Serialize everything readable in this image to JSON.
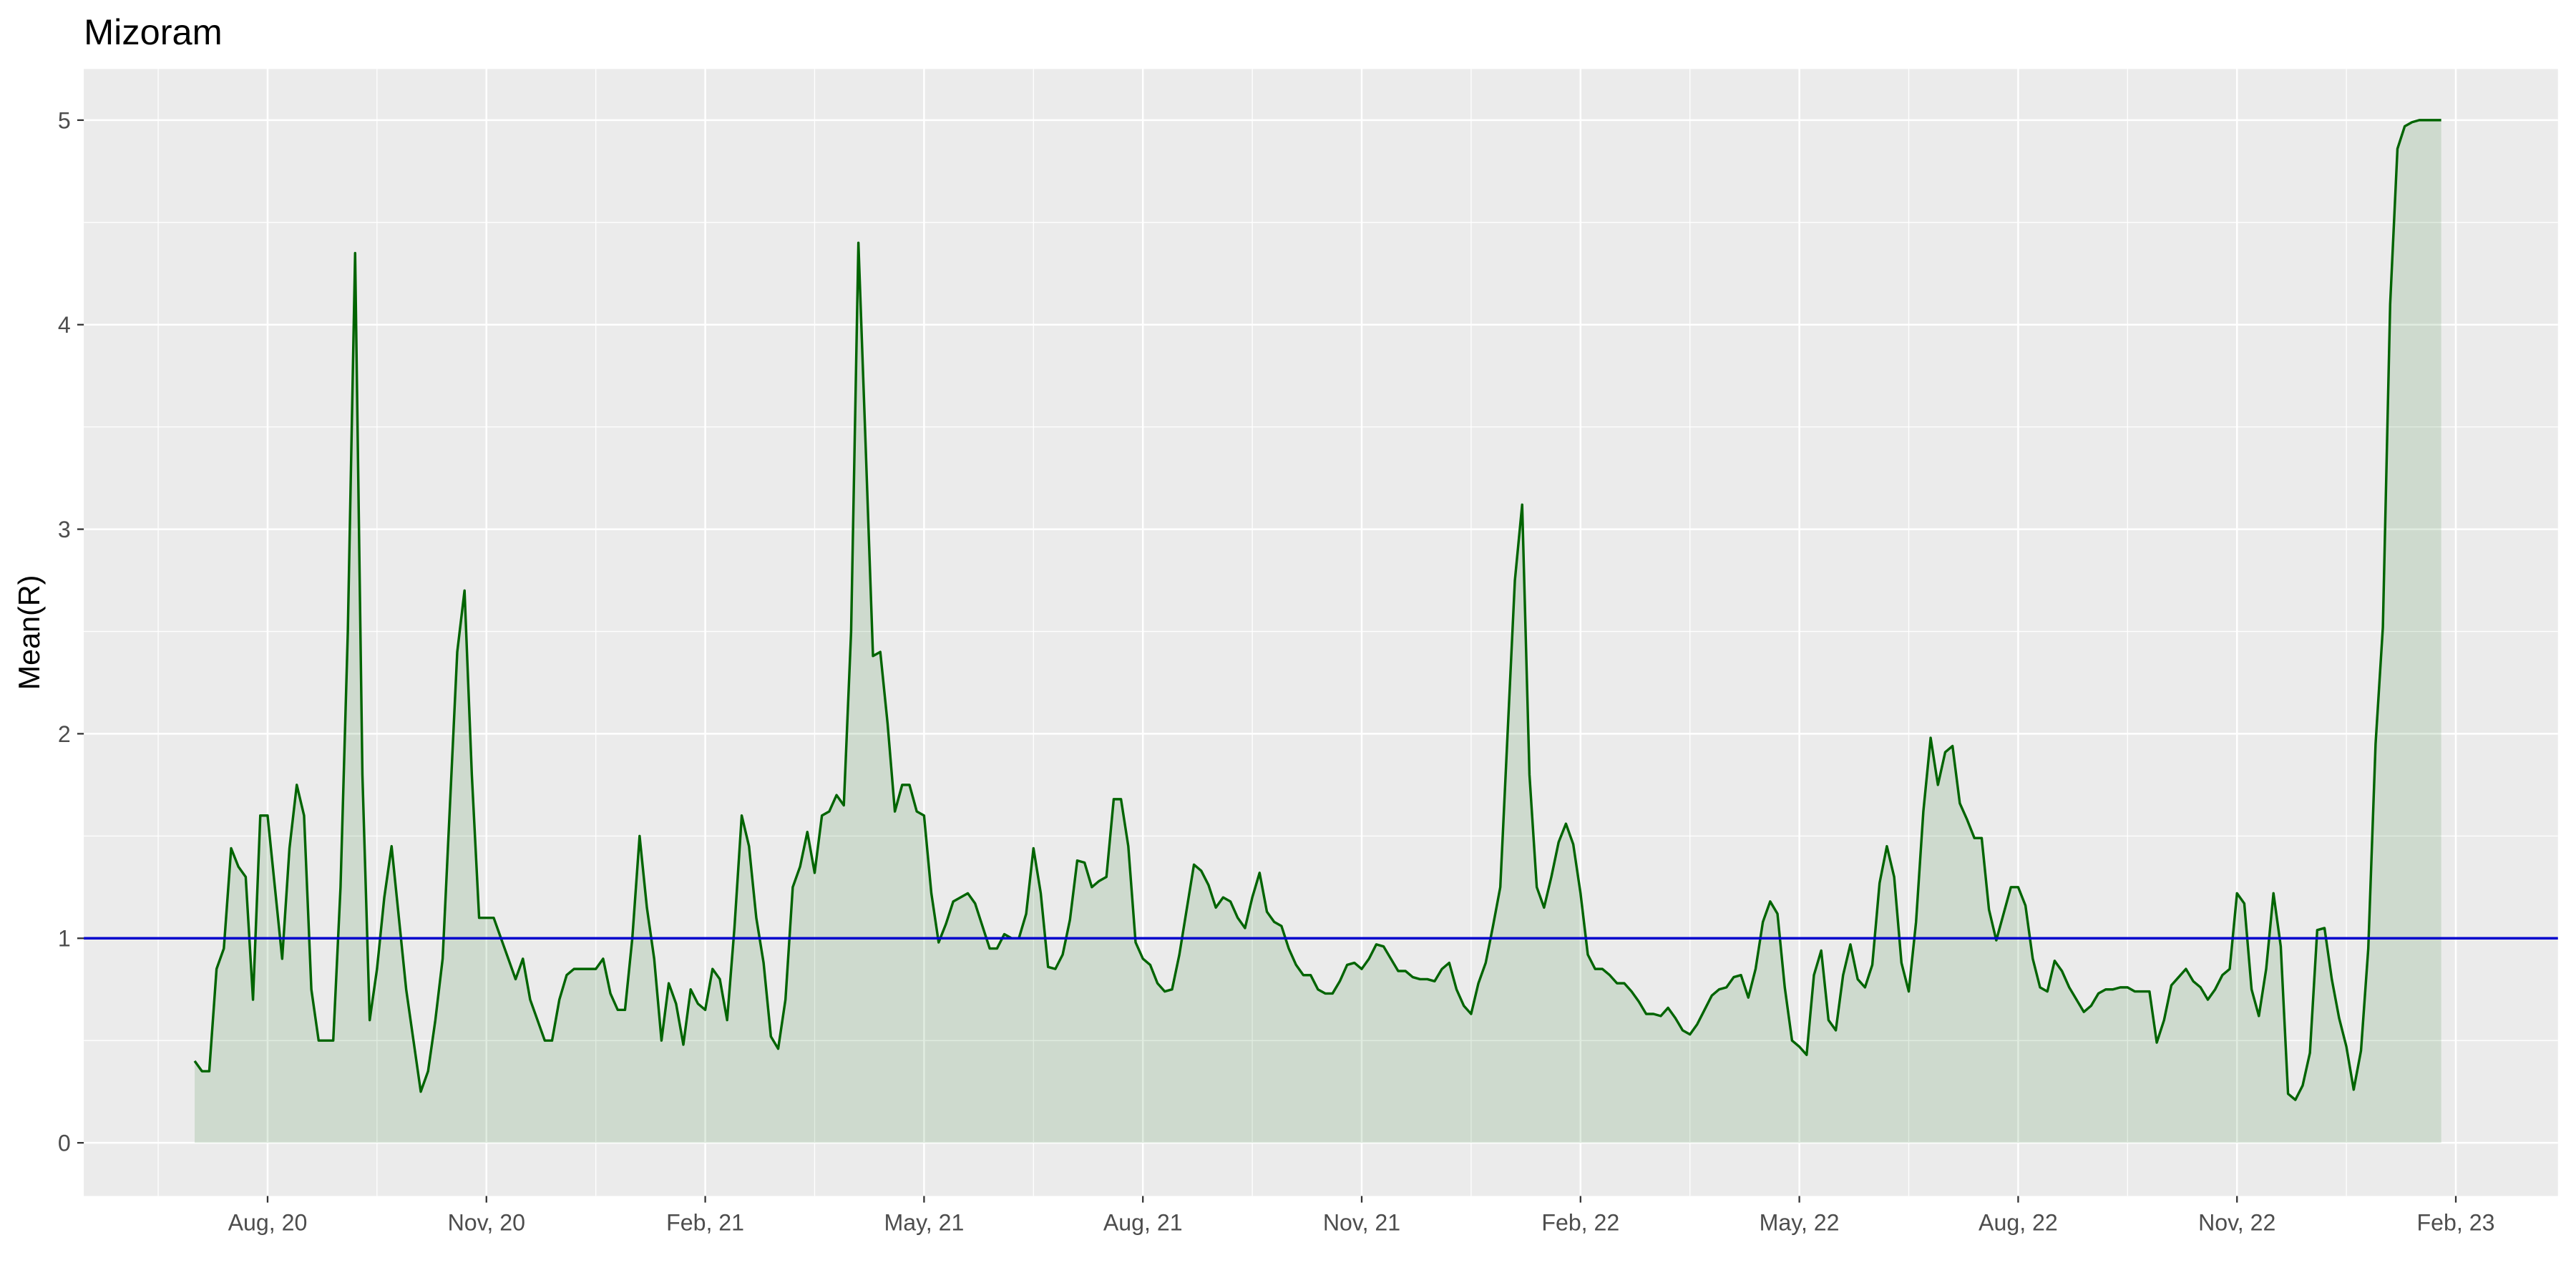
{
  "chart_data": {
    "type": "area",
    "title": "Mizoram",
    "ylabel": "Mean(R)",
    "color": "#006400",
    "fill_opacity": 0.12,
    "hline": {
      "value": 1,
      "color": "#0000cd"
    },
    "grid": true,
    "minor_grid": true,
    "xlim": [
      4.48,
      38.4
    ],
    "ylim": [
      -0.26,
      5.25
    ],
    "xticks": [
      {
        "value": 7,
        "label": "Aug, 20"
      },
      {
        "value": 10,
        "label": "Nov, 20"
      },
      {
        "value": 13,
        "label": "Feb, 21"
      },
      {
        "value": 16,
        "label": "May, 21"
      },
      {
        "value": 19,
        "label": "Aug, 21"
      },
      {
        "value": 22,
        "label": "Nov, 21"
      },
      {
        "value": 25,
        "label": "Feb, 22"
      },
      {
        "value": 28,
        "label": "May, 22"
      },
      {
        "value": 31,
        "label": "Aug, 22"
      },
      {
        "value": 34,
        "label": "Nov, 22"
      },
      {
        "value": 37,
        "label": "Feb, 23"
      }
    ],
    "yticks": [
      0,
      1,
      2,
      3,
      4,
      5
    ],
    "x": [
      6,
      6.1,
      6.2,
      6.3,
      6.4,
      6.5,
      6.6,
      6.7,
      6.8,
      6.9,
      7,
      7.1,
      7.2,
      7.3,
      7.4,
      7.5,
      7.6,
      7.7,
      7.8,
      7.9,
      8,
      8.1,
      8.2,
      8.3,
      8.4,
      8.5,
      8.6,
      8.7,
      8.8,
      8.9,
      9,
      9.1,
      9.2,
      9.3,
      9.4,
      9.5,
      9.6,
      9.7,
      9.8,
      9.9,
      10,
      10.1,
      10.2,
      10.3,
      10.4,
      10.5,
      10.6,
      10.7,
      10.8,
      10.9,
      11,
      11.1,
      11.2,
      11.3,
      11.4,
      11.5,
      11.6,
      11.7,
      11.8,
      11.9,
      12,
      12.1,
      12.2,
      12.3,
      12.4,
      12.5,
      12.6,
      12.7,
      12.8,
      12.9,
      13,
      13.1,
      13.2,
      13.3,
      13.4,
      13.5,
      13.6,
      13.7,
      13.8,
      13.9,
      14,
      14.1,
      14.2,
      14.3,
      14.4,
      14.5,
      14.6,
      14.7,
      14.8,
      14.9,
      15,
      15.1,
      15.2,
      15.3,
      15.4,
      15.5,
      15.6,
      15.7,
      15.8,
      15.9,
      16,
      16.1,
      16.2,
      16.3,
      16.4,
      16.5,
      16.6,
      16.7,
      16.8,
      16.9,
      17,
      17.1,
      17.2,
      17.3,
      17.4,
      17.5,
      17.6,
      17.7,
      17.8,
      17.9,
      18,
      18.1,
      18.2,
      18.3,
      18.4,
      18.5,
      18.6,
      18.7,
      18.8,
      18.9,
      19,
      19.1,
      19.2,
      19.3,
      19.4,
      19.5,
      19.6,
      19.7,
      19.8,
      19.9,
      20,
      20.1,
      20.2,
      20.3,
      20.4,
      20.5,
      20.6,
      20.7,
      20.8,
      20.9,
      21,
      21.1,
      21.2,
      21.3,
      21.4,
      21.5,
      21.6,
      21.7,
      21.8,
      21.9,
      22,
      22.1,
      22.2,
      22.3,
      22.4,
      22.5,
      22.6,
      22.7,
      22.8,
      22.9,
      23,
      23.1,
      23.2,
      23.3,
      23.4,
      23.5,
      23.6,
      23.7,
      23.8,
      23.9,
      24,
      24.1,
      24.2,
      24.3,
      24.4,
      24.5,
      24.6,
      24.7,
      24.8,
      24.9,
      25,
      25.1,
      25.2,
      25.3,
      25.4,
      25.5,
      25.6,
      25.7,
      25.8,
      25.9,
      26,
      26.1,
      26.2,
      26.3,
      26.4,
      26.5,
      26.6,
      26.7,
      26.8,
      26.9,
      27,
      27.1,
      27.2,
      27.3,
      27.4,
      27.5,
      27.6,
      27.7,
      27.8,
      27.9,
      28,
      28.1,
      28.2,
      28.3,
      28.4,
      28.5,
      28.6,
      28.7,
      28.8,
      28.9,
      29,
      29.1,
      29.2,
      29.3,
      29.4,
      29.5,
      29.6,
      29.7,
      29.8,
      29.9,
      30,
      30.1,
      30.2,
      30.3,
      30.4,
      30.5,
      30.6,
      30.7,
      30.8,
      30.9,
      31,
      31.1,
      31.2,
      31.3,
      31.4,
      31.5,
      31.6,
      31.7,
      31.8,
      31.9,
      32,
      32.1,
      32.2,
      32.3,
      32.4,
      32.5,
      32.6,
      32.7,
      32.8,
      32.9,
      33,
      33.1,
      33.2,
      33.3,
      33.4,
      33.5,
      33.6,
      33.7,
      33.8,
      33.9,
      34,
      34.1,
      34.2,
      34.3,
      34.4,
      34.5,
      34.6,
      34.7,
      34.8,
      34.9,
      35,
      35.1,
      35.2,
      35.3,
      35.4,
      35.5,
      35.6,
      35.7,
      35.8,
      35.9,
      36,
      36.1,
      36.2,
      36.3,
      36.4,
      36.5,
      36.6,
      36.7,
      36.8
    ],
    "values": [
      0.4,
      0.35,
      0.35,
      0.85,
      0.95,
      1.44,
      1.35,
      1.3,
      0.7,
      1.6,
      1.6,
      1.25,
      0.9,
      1.44,
      1.75,
      1.6,
      0.75,
      0.5,
      0.5,
      0.5,
      1.25,
      2.5,
      4.35,
      1.8,
      0.6,
      0.85,
      1.2,
      1.45,
      1.1,
      0.75,
      0.5,
      0.25,
      0.35,
      0.6,
      0.9,
      1.65,
      2.4,
      2.7,
      1.8,
      1.1,
      1.1,
      1.1,
      1.0,
      0.9,
      0.8,
      0.9,
      0.7,
      0.6,
      0.5,
      0.5,
      0.7,
      0.82,
      0.85,
      0.85,
      0.85,
      0.85,
      0.9,
      0.73,
      0.65,
      0.65,
      1.0,
      1.5,
      1.15,
      0.9,
      0.5,
      0.78,
      0.68,
      0.48,
      0.75,
      0.68,
      0.65,
      0.85,
      0.8,
      0.6,
      1.05,
      1.6,
      1.45,
      1.1,
      0.88,
      0.52,
      0.46,
      0.7,
      1.25,
      1.35,
      1.52,
      1.32,
      1.6,
      1.62,
      1.7,
      1.65,
      2.5,
      4.4,
      3.4,
      2.38,
      2.4,
      2.05,
      1.62,
      1.75,
      1.75,
      1.62,
      1.6,
      1.22,
      0.98,
      1.07,
      1.18,
      1.2,
      1.22,
      1.17,
      1.06,
      0.95,
      0.95,
      1.02,
      1.0,
      1.0,
      1.12,
      1.44,
      1.22,
      0.86,
      0.85,
      0.92,
      1.09,
      1.38,
      1.37,
      1.25,
      1.28,
      1.3,
      1.68,
      1.68,
      1.45,
      0.98,
      0.9,
      0.87,
      0.78,
      0.74,
      0.75,
      0.92,
      1.14,
      1.36,
      1.33,
      1.26,
      1.15,
      1.2,
      1.18,
      1.1,
      1.05,
      1.2,
      1.32,
      1.13,
      1.08,
      1.06,
      0.95,
      0.87,
      0.82,
      0.82,
      0.75,
      0.73,
      0.73,
      0.79,
      0.87,
      0.88,
      0.85,
      0.9,
      0.97,
      0.96,
      0.9,
      0.84,
      0.84,
      0.81,
      0.8,
      0.8,
      0.79,
      0.85,
      0.88,
      0.75,
      0.67,
      0.63,
      0.78,
      0.88,
      1.06,
      1.25,
      2.0,
      2.75,
      3.12,
      1.8,
      1.25,
      1.15,
      1.3,
      1.47,
      1.56,
      1.46,
      1.22,
      0.92,
      0.85,
      0.85,
      0.82,
      0.78,
      0.78,
      0.74,
      0.69,
      0.63,
      0.63,
      0.62,
      0.66,
      0.61,
      0.55,
      0.53,
      0.58,
      0.65,
      0.72,
      0.75,
      0.76,
      0.81,
      0.82,
      0.71,
      0.85,
      1.08,
      1.18,
      1.12,
      0.76,
      0.5,
      0.47,
      0.43,
      0.82,
      0.94,
      0.6,
      0.55,
      0.82,
      0.97,
      0.8,
      0.76,
      0.87,
      1.27,
      1.45,
      1.3,
      0.88,
      0.74,
      1.08,
      1.62,
      1.98,
      1.75,
      1.91,
      1.94,
      1.66,
      1.58,
      1.49,
      1.49,
      1.14,
      0.99,
      1.12,
      1.25,
      1.25,
      1.16,
      0.9,
      0.76,
      0.74,
      0.89,
      0.84,
      0.76,
      0.7,
      0.64,
      0.67,
      0.73,
      0.75,
      0.75,
      0.76,
      0.76,
      0.74,
      0.74,
      0.74,
      0.49,
      0.6,
      0.77,
      0.81,
      0.85,
      0.79,
      0.76,
      0.7,
      0.75,
      0.82,
      0.85,
      1.22,
      1.17,
      0.75,
      0.62,
      0.85,
      1.22,
      0.96,
      0.24,
      0.21,
      0.28,
      0.44,
      1.04,
      1.05,
      0.8,
      0.61,
      0.47,
      0.26,
      0.45,
      0.95,
      1.95,
      2.52,
      4.1,
      4.86,
      4.97,
      4.99,
      5,
      5,
      5,
      5
    ]
  }
}
